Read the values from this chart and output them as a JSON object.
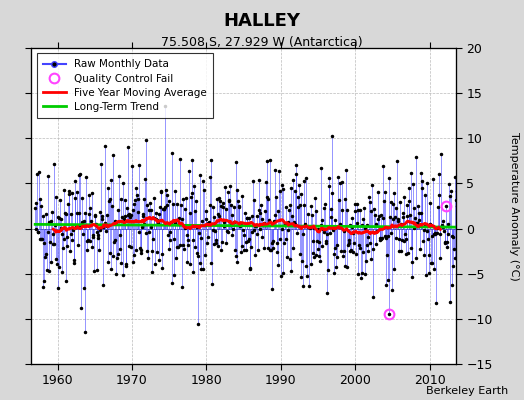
{
  "title": "HALLEY",
  "subtitle": "75.508 S, 27.929 W (Antarctica)",
  "ylabel": "Temperature Anomaly (°C)",
  "credit": "Berkeley Earth",
  "xlim": [
    1956.5,
    2013.5
  ],
  "ylim": [
    -15,
    20
  ],
  "yticks": [
    -15,
    -10,
    -5,
    0,
    5,
    10,
    15,
    20
  ],
  "xticks": [
    1960,
    1970,
    1980,
    1990,
    2000,
    2010
  ],
  "bg_color": "#d8d8d8",
  "plot_bg_color": "#ffffff",
  "line_color": "#4444ff",
  "dot_color": "#000000",
  "ma_color": "#ff0000",
  "trend_color": "#00cc00",
  "qc_color": "#ff44ff",
  "legend_labels": [
    "Raw Monthly Data",
    "Quality Control Fail",
    "Five Year Moving Average",
    "Long-Term Trend"
  ],
  "start_year": 1957,
  "end_year": 2013,
  "seed": 42
}
